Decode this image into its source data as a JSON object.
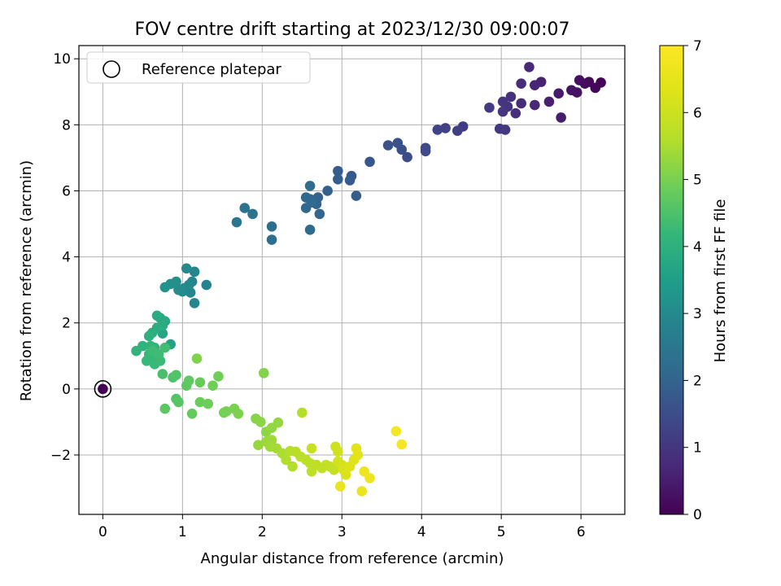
{
  "chart_data": {
    "type": "scatter",
    "title": "FOV centre drift starting at 2023/12/30 09:00:07",
    "xlabel": "Angular distance from reference (arcmin)",
    "ylabel": "Rotation from reference (arcmin)",
    "xlim": [
      -0.3,
      6.55
    ],
    "ylim": [
      -3.8,
      10.4
    ],
    "xticks": [
      0,
      1,
      2,
      3,
      4,
      5,
      6
    ],
    "yticks": [
      -2,
      0,
      2,
      4,
      6,
      8,
      10
    ],
    "ytick_labels": [
      "−2",
      "0",
      "2",
      "4",
      "6",
      "8",
      "10"
    ],
    "grid": true,
    "legend": {
      "position": "top-left",
      "entries": [
        "Reference platepar"
      ]
    },
    "reference_point": {
      "x": 0,
      "y": 0,
      "color_value": 0
    },
    "colorbar": {
      "label": "Hours from first FF file",
      "range": [
        0,
        7
      ],
      "ticks": [
        0,
        1,
        2,
        3,
        4,
        5,
        6,
        7
      ],
      "colormap": "viridis"
    },
    "points": [
      [
        6.25,
        9.28,
        0.05
      ],
      [
        6.18,
        9.12,
        0.1
      ],
      [
        6.1,
        9.3,
        0.15
      ],
      [
        6.05,
        9.25,
        0.2
      ],
      [
        5.98,
        9.35,
        0.25
      ],
      [
        5.95,
        8.98,
        0.3
      ],
      [
        5.88,
        9.05,
        0.35
      ],
      [
        5.72,
        8.95,
        0.45
      ],
      [
        5.75,
        8.22,
        0.5
      ],
      [
        5.6,
        8.7,
        0.55
      ],
      [
        5.5,
        9.3,
        0.6
      ],
      [
        5.42,
        9.2,
        0.65
      ],
      [
        5.35,
        9.75,
        0.7
      ],
      [
        5.42,
        8.6,
        0.72
      ],
      [
        5.25,
        9.25,
        0.78
      ],
      [
        5.25,
        8.65,
        0.82
      ],
      [
        5.18,
        8.35,
        0.86
      ],
      [
        5.12,
        8.85,
        0.9
      ],
      [
        5.08,
        8.55,
        0.95
      ],
      [
        5.02,
        8.7,
        0.98
      ],
      [
        5.02,
        8.4,
        1.0
      ],
      [
        5.05,
        7.85,
        1.02
      ],
      [
        4.98,
        7.88,
        1.05
      ],
      [
        4.85,
        8.52,
        1.08
      ],
      [
        4.52,
        7.95,
        1.15
      ],
      [
        4.45,
        7.82,
        1.2
      ],
      [
        4.3,
        7.9,
        1.25
      ],
      [
        4.2,
        7.85,
        1.3
      ],
      [
        4.05,
        7.3,
        1.4
      ],
      [
        4.05,
        7.2,
        1.42
      ],
      [
        3.82,
        7.02,
        1.5
      ],
      [
        3.75,
        7.25,
        1.55
      ],
      [
        3.7,
        7.45,
        1.58
      ],
      [
        3.58,
        7.38,
        1.62
      ],
      [
        3.35,
        6.88,
        1.7
      ],
      [
        3.12,
        6.45,
        1.78
      ],
      [
        3.1,
        6.32,
        1.8
      ],
      [
        3.18,
        5.85,
        1.82
      ],
      [
        2.95,
        6.6,
        1.85
      ],
      [
        2.95,
        6.35,
        1.88
      ],
      [
        2.82,
        6.0,
        1.95
      ],
      [
        2.7,
        5.8,
        2.0
      ],
      [
        2.68,
        5.6,
        2.02
      ],
      [
        2.72,
        5.3,
        2.05
      ],
      [
        2.6,
        5.75,
        2.08
      ],
      [
        2.55,
        5.8,
        2.1
      ],
      [
        2.55,
        5.48,
        2.12
      ],
      [
        2.62,
        5.65,
        2.15
      ],
      [
        2.6,
        4.82,
        2.18
      ],
      [
        2.6,
        6.15,
        2.2
      ],
      [
        2.12,
        4.92,
        2.28
      ],
      [
        2.12,
        4.52,
        2.3
      ],
      [
        1.88,
        5.3,
        2.38
      ],
      [
        1.78,
        5.48,
        2.42
      ],
      [
        1.68,
        5.05,
        2.45
      ],
      [
        1.3,
        3.15,
        2.82
      ],
      [
        1.15,
        2.6,
        2.85
      ],
      [
        1.15,
        3.55,
        2.88
      ],
      [
        1.12,
        3.25,
        2.9
      ],
      [
        1.1,
        2.92,
        2.92
      ],
      [
        1.05,
        3.65,
        2.95
      ],
      [
        1.08,
        3.15,
        2.98
      ],
      [
        1.02,
        3.05,
        3.0
      ],
      [
        1.0,
        2.95,
        3.02
      ],
      [
        0.95,
        3.0,
        3.05
      ],
      [
        0.92,
        3.25,
        3.1
      ],
      [
        0.85,
        3.18,
        3.15
      ],
      [
        0.78,
        3.08,
        3.2
      ],
      [
        0.85,
        1.35,
        3.6
      ],
      [
        0.75,
        1.68,
        3.7
      ],
      [
        0.78,
        2.05,
        3.75
      ],
      [
        0.72,
        2.15,
        3.8
      ],
      [
        0.68,
        2.22,
        3.85
      ],
      [
        0.75,
        1.92,
        3.88
      ],
      [
        0.68,
        1.85,
        3.9
      ],
      [
        0.62,
        1.7,
        3.95
      ],
      [
        0.58,
        1.6,
        4.0
      ],
      [
        0.5,
        1.3,
        4.05
      ],
      [
        0.42,
        1.15,
        4.1
      ],
      [
        0.6,
        1.3,
        4.12
      ],
      [
        0.65,
        1.25,
        4.15
      ],
      [
        0.58,
        1.05,
        4.18
      ],
      [
        0.62,
        0.95,
        4.2
      ],
      [
        0.55,
        0.85,
        4.22
      ],
      [
        0.65,
        0.75,
        4.25
      ],
      [
        0.72,
        0.85,
        4.28
      ],
      [
        0.62,
        1.15,
        4.3
      ],
      [
        0.7,
        1.05,
        4.32
      ],
      [
        0.78,
        1.25,
        4.35
      ],
      [
        0.75,
        0.45,
        4.45
      ],
      [
        0.88,
        0.35,
        4.5
      ],
      [
        0.92,
        0.42,
        4.55
      ],
      [
        0.92,
        -0.3,
        4.6
      ],
      [
        0.95,
        -0.4,
        4.62
      ],
      [
        0.78,
        -0.6,
        4.65
      ],
      [
        1.05,
        0.1,
        4.7
      ],
      [
        1.08,
        0.25,
        4.72
      ],
      [
        1.12,
        -0.75,
        4.78
      ],
      [
        1.22,
        0.2,
        4.82
      ],
      [
        1.22,
        -0.4,
        4.85
      ],
      [
        1.32,
        -0.45,
        4.88
      ],
      [
        1.38,
        0.1,
        4.9
      ],
      [
        1.45,
        0.38,
        4.92
      ],
      [
        1.52,
        -0.72,
        4.95
      ],
      [
        1.55,
        -0.68,
        4.98
      ],
      [
        1.65,
        -0.6,
        5.02
      ],
      [
        1.7,
        -0.75,
        5.05
      ],
      [
        1.18,
        0.92,
        5.08
      ],
      [
        2.02,
        0.48,
        5.1
      ],
      [
        1.92,
        -0.9,
        5.15
      ],
      [
        1.98,
        -1.0,
        5.18
      ],
      [
        2.05,
        -1.3,
        5.22
      ],
      [
        2.12,
        -1.18,
        5.25
      ],
      [
        2.2,
        -1.02,
        5.28
      ],
      [
        1.95,
        -1.7,
        5.3
      ],
      [
        2.05,
        -1.6,
        5.35
      ],
      [
        2.12,
        -1.55,
        5.38
      ],
      [
        2.1,
        -1.75,
        5.4
      ],
      [
        2.18,
        -1.8,
        5.45
      ],
      [
        2.25,
        -1.95,
        5.5
      ],
      [
        2.3,
        -2.15,
        5.55
      ],
      [
        2.38,
        -2.35,
        5.58
      ],
      [
        2.35,
        -1.88,
        5.62
      ],
      [
        2.42,
        -1.9,
        5.65
      ],
      [
        2.48,
        -2.05,
        5.68
      ],
      [
        2.55,
        -2.15,
        5.7
      ],
      [
        2.6,
        -2.25,
        5.72
      ],
      [
        2.62,
        -2.5,
        5.75
      ],
      [
        2.68,
        -2.3,
        5.78
      ],
      [
        2.75,
        -2.4,
        5.8
      ],
      [
        2.8,
        -2.3,
        5.82
      ],
      [
        2.85,
        -2.35,
        5.85
      ],
      [
        2.9,
        -2.45,
        5.88
      ],
      [
        2.5,
        -0.72,
        5.6
      ],
      [
        2.62,
        -1.8,
        5.9
      ],
      [
        2.92,
        -1.75,
        6.0
      ],
      [
        2.95,
        -1.9,
        6.05
      ],
      [
        2.95,
        -2.2,
        6.1
      ],
      [
        3.0,
        -2.3,
        6.15
      ],
      [
        3.02,
        -2.45,
        6.2
      ],
      [
        3.05,
        -2.6,
        6.25
      ],
      [
        3.1,
        -2.35,
        6.3
      ],
      [
        3.15,
        -2.15,
        6.35
      ],
      [
        3.18,
        -1.8,
        6.4
      ],
      [
        3.2,
        -2.0,
        6.45
      ],
      [
        2.98,
        -2.95,
        6.55
      ],
      [
        3.25,
        -3.1,
        6.6
      ],
      [
        3.28,
        -2.5,
        6.65
      ],
      [
        3.35,
        -2.7,
        6.7
      ],
      [
        3.68,
        -1.28,
        6.8
      ],
      [
        3.75,
        -1.68,
        6.85
      ]
    ]
  }
}
